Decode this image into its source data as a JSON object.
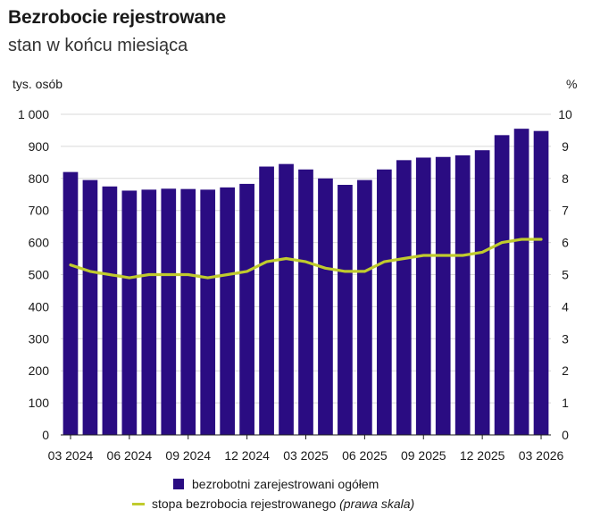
{
  "title": "Bezrobocie rejestrowane",
  "subtitle": "stan w końcu miesiąca",
  "colors": {
    "bar": "#2a0c82",
    "line": "#c0cb2d",
    "grid": "#d9d9d9"
  },
  "chart_data": {
    "type": "bar",
    "categories": [
      "03 2024",
      "04 2024",
      "05 2024",
      "06 2024",
      "07 2024",
      "08 2024",
      "09 2024",
      "10 2024",
      "11 2024",
      "12 2024",
      "01 2025",
      "02 2025",
      "03 2025",
      "04 2025",
      "05 2025",
      "06 2025",
      "07 2025",
      "08 2025",
      "09 2025",
      "10 2025",
      "11 2025",
      "12 2025",
      "01 2026",
      "02 2026",
      "03 2026"
    ],
    "x_tick_labels": [
      "03 2024",
      "06 2024",
      "09 2024",
      "12 2024",
      "03 2025",
      "06 2025",
      "09 2025",
      "12 2025",
      "03 2026"
    ],
    "series": [
      {
        "name": "bezrobotni zarejestrowani ogółem",
        "axis": "left",
        "type": "bar",
        "values": [
          820,
          795,
          775,
          762,
          765,
          768,
          767,
          765,
          772,
          783,
          837,
          845,
          828,
          800,
          780,
          795,
          828,
          857,
          865,
          867,
          872,
          888,
          935,
          955,
          948
        ]
      },
      {
        "name": "stopa bezrobocia rejestrowanego",
        "name_suffix": "(prawa skala)",
        "axis": "right",
        "type": "line",
        "values": [
          5.3,
          5.1,
          5.0,
          4.9,
          5.0,
          5.0,
          5.0,
          4.9,
          5.0,
          5.1,
          5.4,
          5.5,
          5.4,
          5.2,
          5.1,
          5.1,
          5.4,
          5.5,
          5.6,
          5.6,
          5.6,
          5.7,
          6.0,
          6.1,
          6.1
        ]
      }
    ],
    "ylabel": "tys. osób",
    "y2label": "%",
    "ylim": [
      0,
      1000
    ],
    "y2lim": [
      0,
      10
    ],
    "yticks": [
      "0",
      "100",
      "200",
      "300",
      "400",
      "500",
      "600",
      "700",
      "800",
      "900",
      "1 000"
    ],
    "y2ticks": [
      "0",
      "1",
      "2",
      "3",
      "4",
      "5",
      "6",
      "7",
      "8",
      "9",
      "10"
    ],
    "grid": true,
    "legend_placement": "bottom"
  }
}
